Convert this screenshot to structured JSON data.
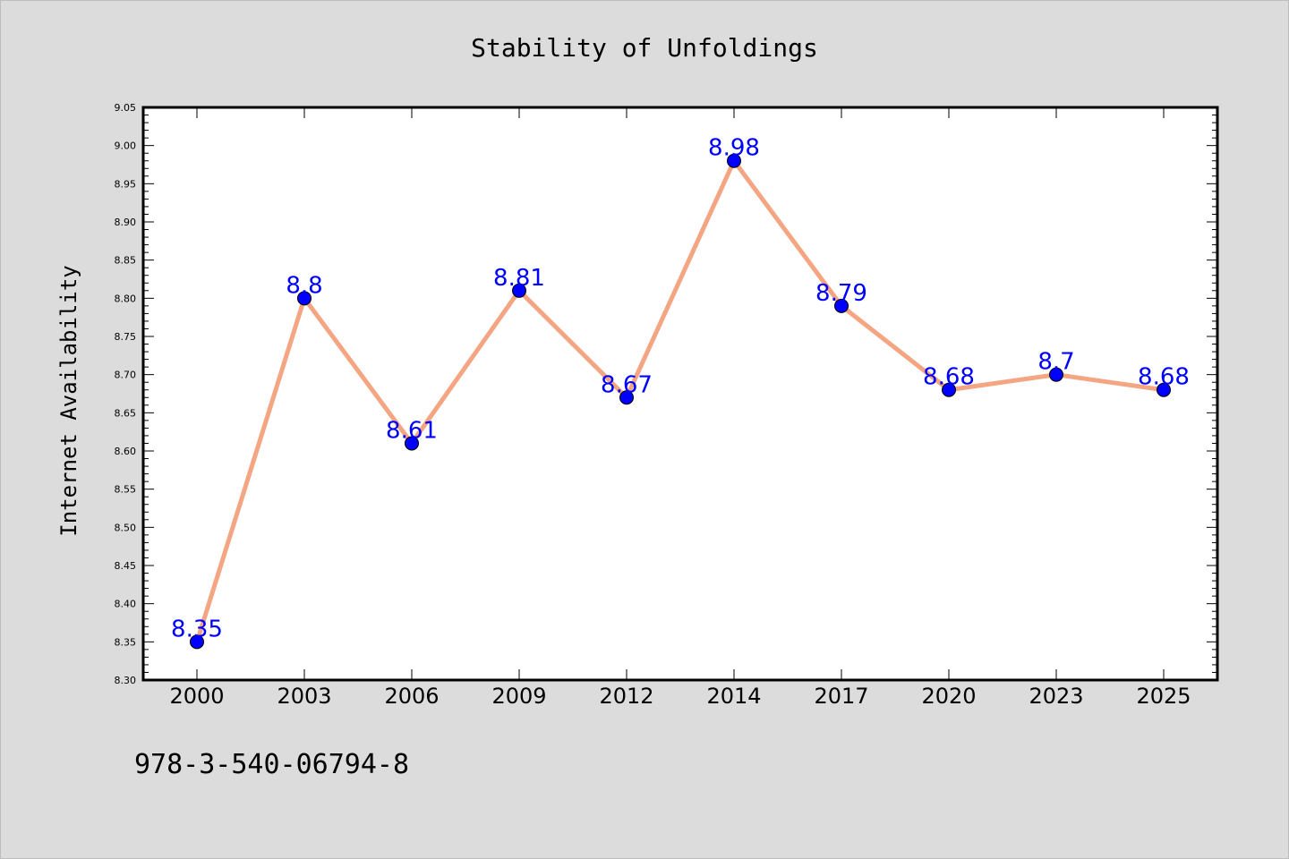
{
  "colors": {
    "background": "#dcdcdc",
    "plot_background": "#ffffff",
    "line": "#f4a582",
    "marker": "#0000ff",
    "data_label": "#0000ff"
  },
  "footer_text": "978-3-540-06794-8",
  "chart_data": {
    "type": "line",
    "title": "Stability of Unfoldings",
    "xlabel": "",
    "ylabel": "Internet Availability",
    "categories": [
      "2000",
      "2003",
      "2006",
      "2009",
      "2012",
      "2014",
      "2017",
      "2020",
      "2023",
      "2025"
    ],
    "series": [
      {
        "values": [
          8.35,
          8.8,
          8.61,
          8.81,
          8.67,
          8.98,
          8.79,
          8.68,
          8.7,
          8.68
        ],
        "labels": [
          "8.35",
          "8.8",
          "8.61",
          "8.81",
          "8.67",
          "8.98",
          "8.79",
          "8.68",
          "8.7",
          "8.68"
        ]
      }
    ],
    "ylim": [
      8.3,
      9.05
    ],
    "yticks": [
      "8.30",
      "8.35",
      "8.40",
      "8.45",
      "8.50",
      "8.55",
      "8.60",
      "8.65",
      "8.70",
      "8.75",
      "8.80",
      "8.85",
      "8.90",
      "8.95",
      "9.00",
      "9.05"
    ],
    "grid": false,
    "legend": "none"
  }
}
